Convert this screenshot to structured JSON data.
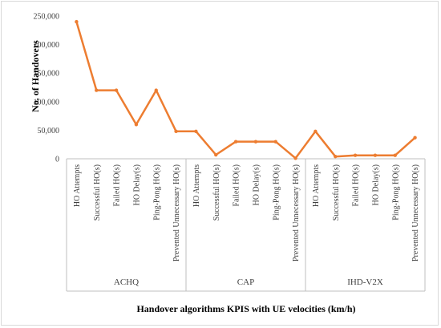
{
  "chart_data": {
    "type": "line",
    "xlabel": "Handover algorithms  KPIS with UE velocities (km/h)",
    "ylabel": "No. of Handovers",
    "ylim": [
      0,
      250000
    ],
    "yticks": [
      "0",
      "50,000",
      "100,000",
      "150,000",
      "200,000",
      "250,000"
    ],
    "categories": [
      "HO Attempts",
      "Successful HO(s)",
      "Failed HO(s)",
      "HO Delay(s)",
      "Ping-Pong HO(s)",
      "Prevented Unnecessary HO(s)",
      "HO Attempts",
      "Successful HO(s)",
      "Failed HO(s)",
      "HO Delay(s)",
      "Ping-Pong HO(s)",
      "Prevented Unnecessary HO(s)",
      "HO Attempts",
      "Successful HO(s)",
      "Failed HO(s)",
      "HO Delay(s)",
      "Ping-Pong HO(s)",
      "Prevented Unnecessary HO(s)"
    ],
    "groups": [
      "ACHQ",
      "CAP",
      "IHD-V2X"
    ],
    "series": [
      {
        "values": [
          240000,
          120000,
          120000,
          60000,
          120000,
          48000,
          48000,
          7000,
          30000,
          30000,
          30000,
          1000,
          48000,
          4000,
          6000,
          6000,
          6000,
          37000
        ],
        "color": "#ed7d31"
      }
    ],
    "grid": false,
    "legend": "none"
  }
}
